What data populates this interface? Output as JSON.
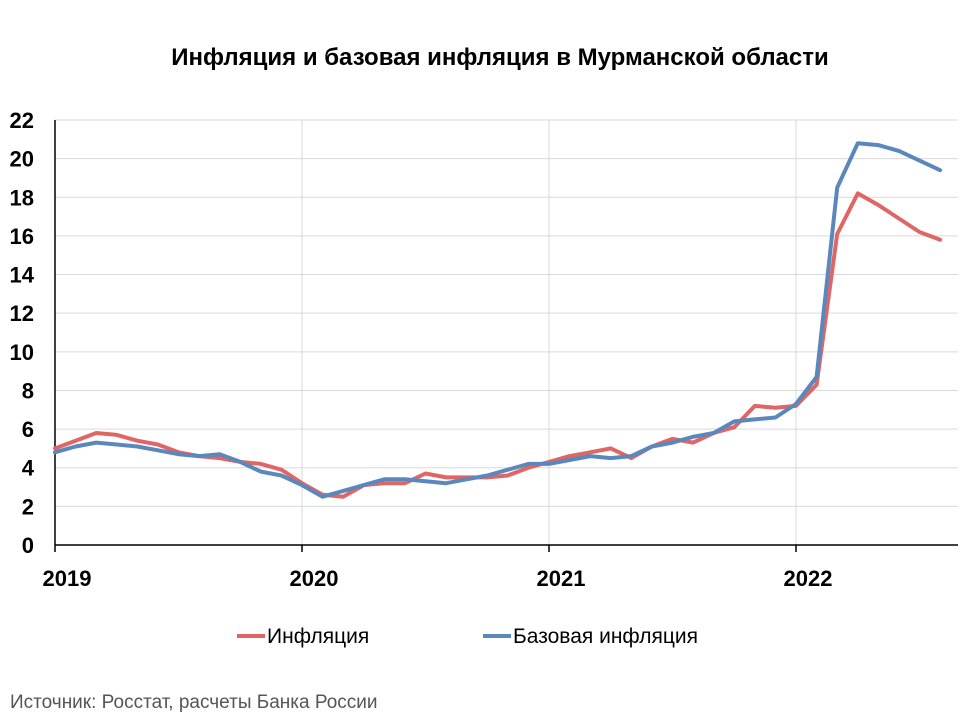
{
  "chart_data": {
    "type": "line",
    "title": "Инфляция и базовая инфляция в Мурманской области",
    "source": "Источник: Росстат, расчеты Банка России",
    "ylim": [
      0,
      22
    ],
    "yticks": [
      0,
      2,
      4,
      6,
      8,
      10,
      12,
      14,
      16,
      18,
      20,
      22
    ],
    "xticks": [
      "2019",
      "2020",
      "2021",
      "2022"
    ],
    "grid": true,
    "legend_position": "bottom",
    "x_start": "2019-01",
    "x": [
      "2019-01",
      "2019-02",
      "2019-03",
      "2019-04",
      "2019-05",
      "2019-06",
      "2019-07",
      "2019-08",
      "2019-09",
      "2019-10",
      "2019-11",
      "2019-12",
      "2020-01",
      "2020-02",
      "2020-03",
      "2020-04",
      "2020-05",
      "2020-06",
      "2020-07",
      "2020-08",
      "2020-09",
      "2020-10",
      "2020-11",
      "2020-12",
      "2021-01",
      "2021-02",
      "2021-03",
      "2021-04",
      "2021-05",
      "2021-06",
      "2021-07",
      "2021-08",
      "2021-09",
      "2021-10",
      "2021-11",
      "2021-12",
      "2022-01",
      "2022-02",
      "2022-03",
      "2022-04",
      "2022-05",
      "2022-06",
      "2022-07",
      "2022-08"
    ],
    "series": [
      {
        "name": "Инфляция",
        "color": "#E06666",
        "values": [
          5.0,
          5.4,
          5.8,
          5.7,
          5.4,
          5.2,
          4.8,
          4.6,
          4.5,
          4.3,
          4.2,
          3.9,
          3.2,
          2.6,
          2.5,
          3.1,
          3.2,
          3.2,
          3.7,
          3.5,
          3.5,
          3.5,
          3.6,
          4.0,
          4.3,
          4.6,
          4.8,
          5.0,
          4.5,
          5.1,
          5.5,
          5.3,
          5.8,
          6.1,
          7.2,
          7.1,
          7.2,
          8.3,
          16.1,
          18.2,
          17.6,
          16.9,
          16.2,
          15.8
        ]
      },
      {
        "name": "Базовая инфляция",
        "color": "#5B88BC",
        "values": [
          4.8,
          5.1,
          5.3,
          5.2,
          5.1,
          4.9,
          4.7,
          4.6,
          4.7,
          4.3,
          3.8,
          3.6,
          3.1,
          2.5,
          2.8,
          3.1,
          3.4,
          3.4,
          3.3,
          3.2,
          3.4,
          3.6,
          3.9,
          4.2,
          4.2,
          4.4,
          4.6,
          4.5,
          4.6,
          5.1,
          5.3,
          5.6,
          5.8,
          6.4,
          6.5,
          6.6,
          7.3,
          8.7,
          18.5,
          20.8,
          20.7,
          20.4,
          19.9,
          19.4
        ]
      }
    ]
  }
}
